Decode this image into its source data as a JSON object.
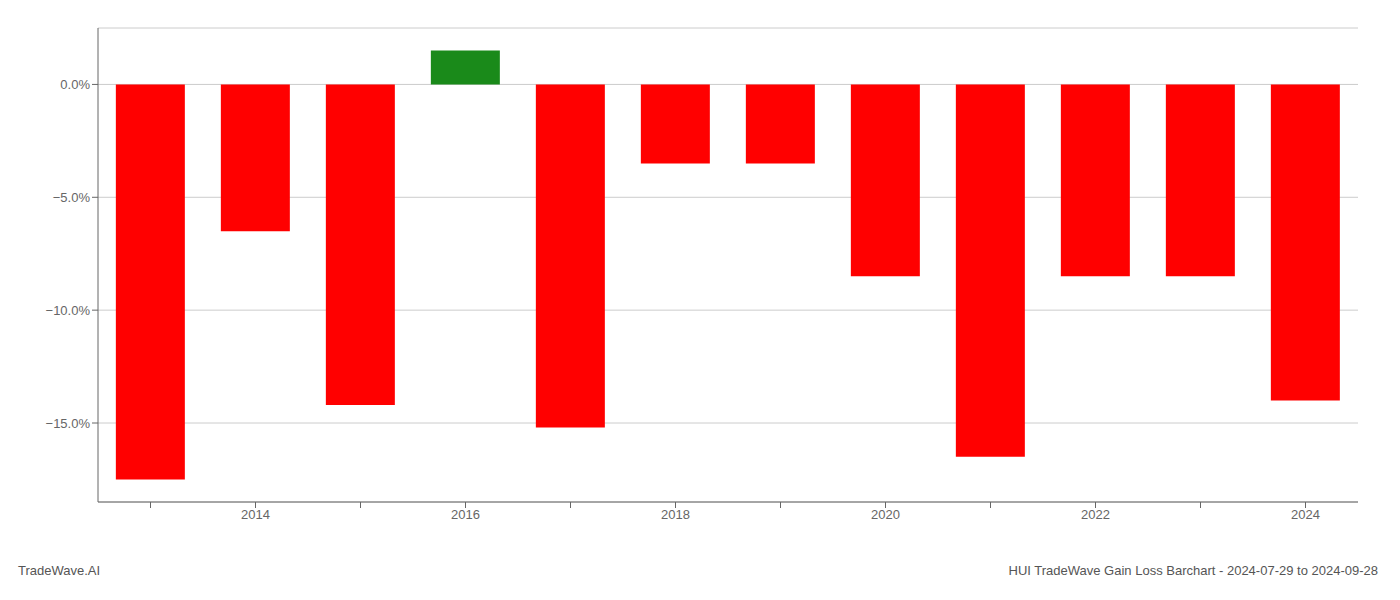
{
  "chart_data": {
    "type": "bar",
    "title": "HUI TradeWave Gain Loss Barchart - 2024-07-29 to 2024-09-28",
    "annotations": [
      {
        "text": "TradeWave.AI"
      }
    ],
    "categories": [
      null,
      "2014",
      null,
      "2016",
      null,
      "2018",
      null,
      "2020",
      null,
      "2022",
      null,
      "2024"
    ],
    "values": [
      -17.5,
      -6.5,
      -14.2,
      1.5,
      -15.2,
      -3.5,
      -3.5,
      -8.5,
      -16.5,
      -8.5,
      -8.5,
      -14.0
    ],
    "colors": [
      "#ff0000",
      "#ff0000",
      "#ff0000",
      "#1a8a1a",
      "#ff0000",
      "#ff0000",
      "#ff0000",
      "#ff0000",
      "#ff0000",
      "#ff0000",
      "#ff0000",
      "#ff0000"
    ],
    "ylim": [
      -18.5,
      2.5
    ],
    "yticks": [
      {
        "value": -15,
        "label": "−15.0%"
      },
      {
        "value": -10,
        "label": "−10.0%"
      },
      {
        "value": -5,
        "label": "−5.0%"
      },
      {
        "value": 0,
        "label": "0.0%"
      }
    ],
    "grid": true
  }
}
